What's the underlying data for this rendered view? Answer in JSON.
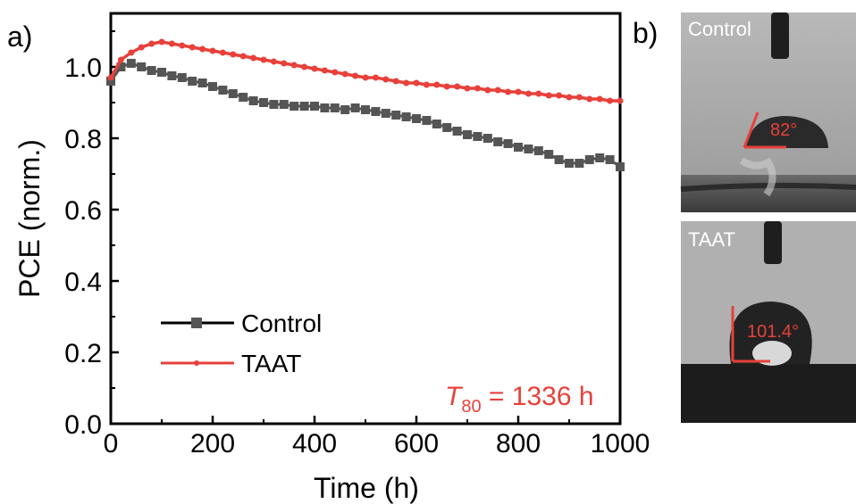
{
  "panel_a_label": "a)",
  "panel_b_label": "b)",
  "chart_data": {
    "type": "line",
    "xlabel": "Time (h)",
    "ylabel": "PCE (norm.)",
    "xlim": [
      0,
      1000
    ],
    "ylim": [
      0,
      1.15
    ],
    "xticks": [
      "0",
      "200",
      "400",
      "600",
      "800",
      "1000"
    ],
    "yticks": [
      "0.0",
      "0.2",
      "0.4",
      "0.6",
      "0.8",
      "1.0"
    ],
    "grid": false,
    "legend_position": "bottom-left",
    "series": [
      {
        "name": "Control",
        "color": "#555555",
        "marker": "square",
        "x": [
          0,
          20,
          40,
          60,
          80,
          100,
          120,
          140,
          160,
          180,
          200,
          220,
          240,
          260,
          280,
          300,
          320,
          340,
          360,
          380,
          400,
          420,
          440,
          460,
          480,
          500,
          520,
          540,
          560,
          580,
          600,
          620,
          640,
          660,
          680,
          700,
          720,
          740,
          760,
          780,
          800,
          820,
          840,
          860,
          880,
          900,
          920,
          940,
          960,
          980,
          1000
        ],
        "y": [
          0.96,
          1.0,
          1.01,
          1.0,
          0.99,
          0.985,
          0.975,
          0.97,
          0.96,
          0.955,
          0.945,
          0.935,
          0.925,
          0.915,
          0.905,
          0.9,
          0.895,
          0.895,
          0.89,
          0.89,
          0.89,
          0.885,
          0.885,
          0.88,
          0.885,
          0.88,
          0.875,
          0.87,
          0.865,
          0.86,
          0.855,
          0.85,
          0.84,
          0.83,
          0.82,
          0.81,
          0.805,
          0.8,
          0.79,
          0.785,
          0.775,
          0.77,
          0.765,
          0.755,
          0.74,
          0.73,
          0.73,
          0.74,
          0.745,
          0.74,
          0.72
        ]
      },
      {
        "name": "TAAT",
        "color": "#e8403a",
        "marker": "dot",
        "x": [
          0,
          20,
          40,
          60,
          80,
          100,
          120,
          140,
          160,
          180,
          200,
          220,
          240,
          260,
          280,
          300,
          320,
          340,
          360,
          380,
          400,
          420,
          440,
          460,
          480,
          500,
          520,
          540,
          560,
          580,
          600,
          620,
          640,
          660,
          680,
          700,
          720,
          740,
          760,
          780,
          800,
          820,
          840,
          860,
          880,
          900,
          920,
          940,
          960,
          980,
          1000
        ],
        "y": [
          0.97,
          1.02,
          1.04,
          1.055,
          1.065,
          1.07,
          1.065,
          1.06,
          1.055,
          1.05,
          1.045,
          1.04,
          1.035,
          1.03,
          1.025,
          1.02,
          1.015,
          1.01,
          1.005,
          1.0,
          0.995,
          0.99,
          0.985,
          0.98,
          0.975,
          0.97,
          0.97,
          0.965,
          0.96,
          0.955,
          0.955,
          0.95,
          0.95,
          0.945,
          0.945,
          0.94,
          0.94,
          0.935,
          0.935,
          0.93,
          0.93,
          0.925,
          0.925,
          0.92,
          0.92,
          0.915,
          0.915,
          0.91,
          0.91,
          0.905,
          0.905
        ]
      }
    ],
    "annotation": {
      "symbol": "T",
      "subscript": "80",
      "text": " = 1336 h"
    }
  },
  "photos": {
    "top_label": "Control",
    "top_angle": "82°",
    "bottom_label": "TAAT",
    "bottom_angle": "101.4°"
  }
}
